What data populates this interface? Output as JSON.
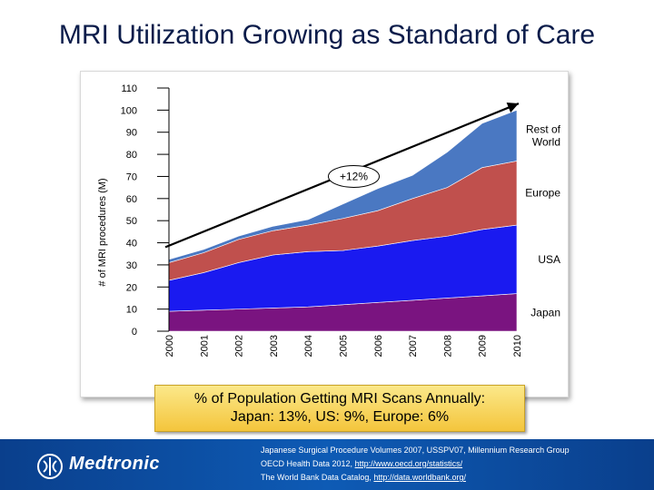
{
  "slide": {
    "title": "MRI Utilization Growing as Standard of Care"
  },
  "callout": {
    "line1": "% of Population Getting MRI Scans Annually:",
    "line2": "Japan: 13%, US: 9%, Europe: 6%"
  },
  "footer": {
    "brand": "Medtronic",
    "source_lines": [
      {
        "text": "Japanese Surgical Procedure Volumes 2007, USSPV07, Millennium Research Group",
        "link": ""
      },
      {
        "text": "OECD Health Data 2012, ",
        "link": "http://www.oecd.org/statistics/"
      },
      {
        "text": "The World Bank Data Catalog, ",
        "link": "http://data.worldbank.org/"
      }
    ]
  },
  "colors": {
    "japan": "#7a1480",
    "usa": "#1a1af0",
    "europe": "#c0504d",
    "rest_of_world": "#4a78c2",
    "footer_bg": "#0a3f8c",
    "callout_bg": "#f7d65a"
  },
  "chart_data": {
    "type": "area",
    "stacked": true,
    "ylabel": "# of MRI procedures (M)",
    "xlabel": "",
    "ylim": [
      0,
      110
    ],
    "yticks": [
      0,
      10,
      20,
      30,
      40,
      50,
      60,
      70,
      80,
      90,
      100,
      110
    ],
    "categories": [
      "2000",
      "2001",
      "2002",
      "2003",
      "2004",
      "2005",
      "2006",
      "2007",
      "2008",
      "2009",
      "2010"
    ],
    "series": [
      {
        "name": "Japan",
        "color": "#7a1480",
        "values": [
          9,
          9.5,
          10,
          10.5,
          11,
          12,
          13,
          14,
          15,
          16,
          17
        ]
      },
      {
        "name": "USA",
        "color": "#1a1af0",
        "values": [
          14,
          17,
          21,
          24,
          25,
          24.5,
          25.5,
          27,
          28,
          30,
          31
        ]
      },
      {
        "name": "Europe",
        "color": "#c0504d",
        "values": [
          8,
          9,
          10.5,
          11,
          12,
          14.5,
          16,
          19,
          22,
          28,
          29
        ]
      },
      {
        "name": "Rest of World",
        "color": "#4a78c2",
        "values": [
          1.5,
          1.5,
          1.5,
          2,
          2.5,
          6.5,
          10,
          10.5,
          16,
          20,
          23
        ]
      }
    ],
    "annotations": [
      {
        "text": "+12%",
        "type": "trend-arrow",
        "from_x": "2000",
        "from_y": 38,
        "to_x": "2010",
        "to_y": 103,
        "label_at_x": "2005",
        "label_y": 70
      }
    ],
    "grid": false,
    "legend": "series labels at right edge"
  }
}
